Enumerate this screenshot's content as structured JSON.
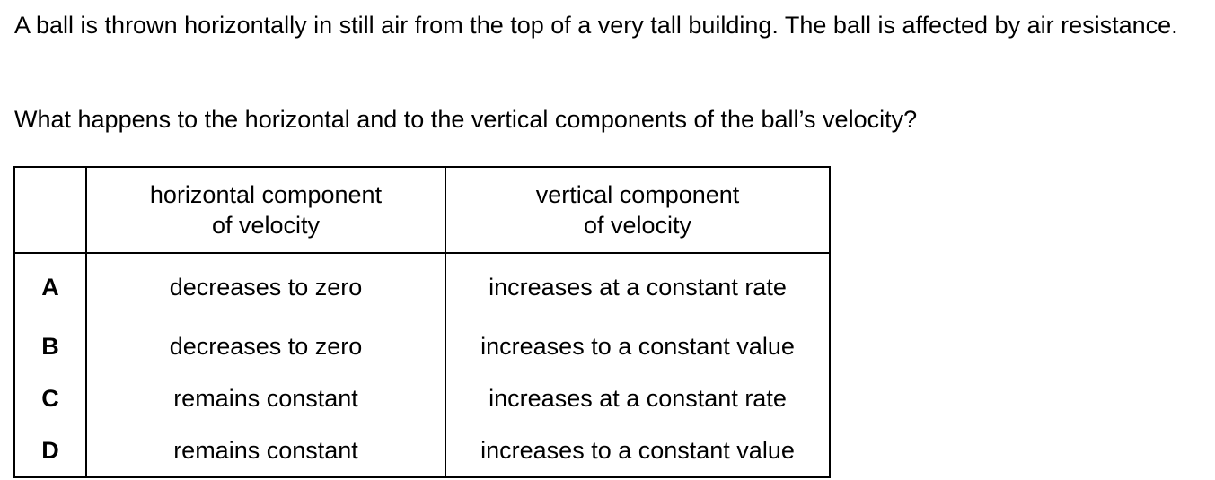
{
  "question": {
    "stem": "A ball is thrown horizontally in still air from the top of a very tall building. The ball is affected by air resistance.",
    "prompt": "What happens to the horizontal and to the vertical components of the ball’s velocity?"
  },
  "table": {
    "headers": {
      "letter": "",
      "horizontal_line1": "horizontal component",
      "horizontal_line2": "of velocity",
      "vertical_line1": "vertical component",
      "vertical_line2": "of velocity"
    },
    "rows": [
      {
        "letter": "A",
        "horizontal": "decreases to zero",
        "vertical": "increases at a constant rate"
      },
      {
        "letter": "B",
        "horizontal": "decreases to zero",
        "vertical": "increases to a constant value"
      },
      {
        "letter": "C",
        "horizontal": "remains constant",
        "vertical": "increases at a constant rate"
      },
      {
        "letter": "D",
        "horizontal": "remains constant",
        "vertical": "increases to a constant value"
      }
    ]
  }
}
